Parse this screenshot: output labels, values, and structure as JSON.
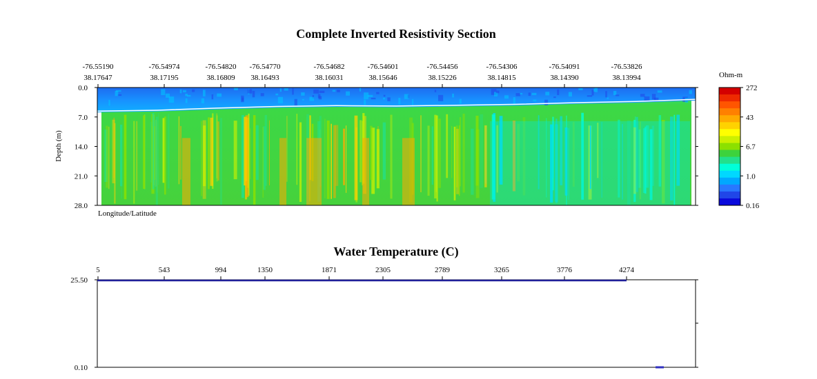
{
  "chart_data": [
    {
      "type": "heatmap",
      "title": "Complete Inverted Resistivity Section",
      "ylabel": "Depth (m)",
      "xlabel": "Longitude/Latitude",
      "ylim": [
        0.0,
        28.0
      ],
      "yticks": [
        "0.0",
        "7.0",
        "14.0",
        "21.0",
        "28.0"
      ],
      "x_ticks": [
        {
          "lon": "-76.55190",
          "lat": "38.17647"
        },
        {
          "lon": "-76.54974",
          "lat": "38.17195"
        },
        {
          "lon": "-76.54820",
          "lat": "38.16809"
        },
        {
          "lon": "-76.54770",
          "lat": "38.16493"
        },
        {
          "lon": "-76.54682",
          "lat": "38.16031"
        },
        {
          "lon": "-76.54601",
          "lat": "38.15646"
        },
        {
          "lon": "-76.54456",
          "lat": "38.15226"
        },
        {
          "lon": "-76.54306",
          "lat": "38.14815"
        },
        {
          "lon": "-76.54091",
          "lat": "38.14390"
        },
        {
          "lon": "-76.53826",
          "lat": "38.13994"
        }
      ],
      "colorbar": {
        "label": "Ohm-m",
        "ticks": [
          "272",
          "43",
          "6.7",
          "1.0",
          "0.16"
        ],
        "colors": [
          "#d40000",
          "#ee2a00",
          "#ff5500",
          "#ff8000",
          "#ffaa00",
          "#ffd200",
          "#ffff00",
          "#ccf000",
          "#8ce000",
          "#3dd23d",
          "#22e08c",
          "#00ffd8",
          "#00d8ff",
          "#00a8ff",
          "#2878ff",
          "#2046e8",
          "#0a0adc"
        ]
      },
      "water_bottom_depth_m": [
        5.6,
        5.4,
        4.9,
        4.5,
        4.3,
        4.4,
        4.2,
        4.0,
        3.6,
        3.3,
        2.8
      ]
    },
    {
      "type": "line",
      "title": "Water Temperature (C)",
      "x_ticks": [
        "5",
        "543",
        "994",
        "1350",
        "1871",
        "2305",
        "2789",
        "3265",
        "3776",
        "4274"
      ],
      "yticks": [
        "25.50",
        "0.10"
      ],
      "ylim": [
        0.1,
        25.5
      ],
      "series": [
        {
          "name": "Water Temperature",
          "values": [
            25.5,
            25.5,
            25.5,
            25.5,
            25.5,
            25.5,
            25.5,
            25.5,
            25.5,
            25.5
          ],
          "color": "#20209a"
        }
      ]
    }
  ]
}
